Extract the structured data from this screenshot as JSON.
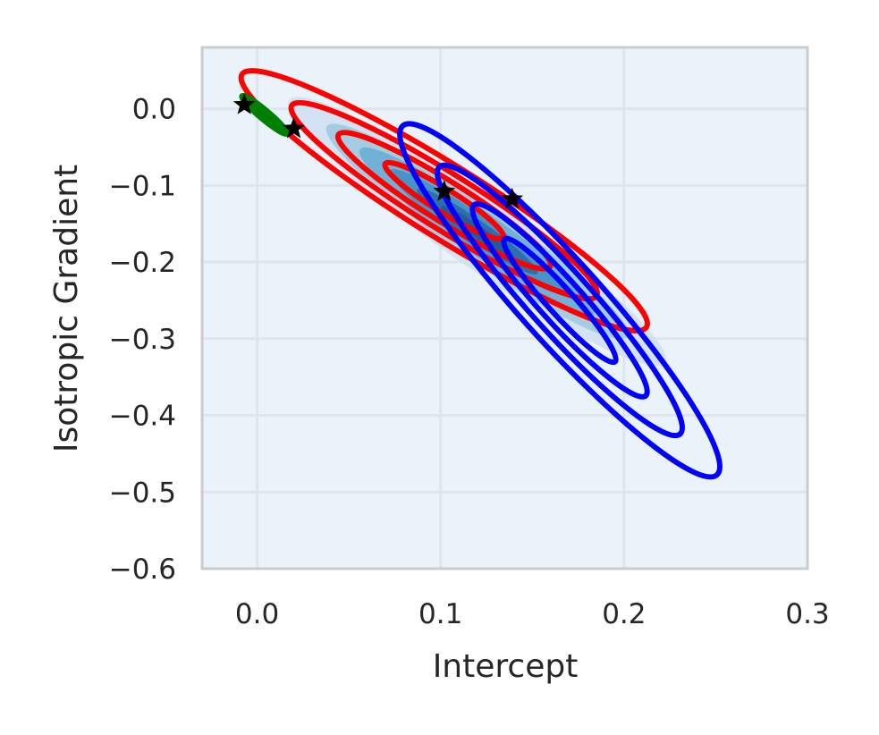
{
  "chart_data": {
    "type": "contour",
    "title": "",
    "xlabel": "Intercept",
    "ylabel": "Isotropic Gradient",
    "xlim": [
      -0.03,
      0.3
    ],
    "ylim": [
      -0.6,
      0.08
    ],
    "xticks": [
      0.0,
      0.1,
      0.2,
      0.3
    ],
    "xtick_labels": [
      "0.0",
      "0.1",
      "0.2",
      "0.3"
    ],
    "yticks": [
      0.0,
      -0.1,
      -0.2,
      -0.3,
      -0.4,
      -0.5,
      -0.6
    ],
    "ytick_labels": [
      "0.0",
      "−0.1",
      "−0.2",
      "−0.3",
      "−0.4",
      "−0.5",
      "−0.6"
    ],
    "grid": true,
    "colors": {
      "background": "#eaf2fa",
      "grid": "#dfe5ec",
      "spine": "#cccccc",
      "fill_levels": [
        "#d0e1f2",
        "#9ecae1",
        "#6baed6",
        "#4292c6",
        "#2e68a8",
        "#24589a"
      ],
      "red": "#ff0000",
      "blue": "#0000ff",
      "green": "#008000",
      "star": "#000000"
    },
    "filled_density": {
      "center": [
        0.12,
        -0.16
      ],
      "levels": [
        {
          "rx": 0.125,
          "ry": 0.045,
          "angle_deg": 35
        },
        {
          "rx": 0.1,
          "ry": 0.036,
          "angle_deg": 35
        },
        {
          "rx": 0.078,
          "ry": 0.028,
          "angle_deg": 35
        },
        {
          "rx": 0.058,
          "ry": 0.02,
          "angle_deg": 35
        },
        {
          "rx": 0.04,
          "ry": 0.014,
          "angle_deg": 35
        },
        {
          "rx": 0.024,
          "ry": 0.008,
          "angle_deg": 35
        }
      ]
    },
    "series": [
      {
        "color": "red",
        "center": [
          0.102,
          -0.12
        ],
        "levels": [
          {
            "rx": 0.13,
            "ry": 0.047,
            "angle_deg": 32
          },
          {
            "rx": 0.098,
            "ry": 0.036,
            "angle_deg": 32
          },
          {
            "rx": 0.068,
            "ry": 0.026,
            "angle_deg": 32
          },
          {
            "rx": 0.038,
            "ry": 0.015,
            "angle_deg": 32
          }
        ]
      },
      {
        "color": "blue",
        "center": [
          0.165,
          -0.25
        ],
        "levels": [
          {
            "rx": 0.128,
            "ry": 0.053,
            "angle_deg": 48
          },
          {
            "rx": 0.098,
            "ry": 0.04,
            "angle_deg": 48
          },
          {
            "rx": 0.07,
            "ry": 0.028,
            "angle_deg": 48
          },
          {
            "rx": 0.045,
            "ry": 0.017,
            "angle_deg": 48
          }
        ]
      },
      {
        "color": "green",
        "center": [
          0.004,
          -0.008
        ],
        "levels": [
          {
            "rx": 0.016,
            "ry": 0.006,
            "angle_deg": 40
          }
        ]
      }
    ],
    "points": [
      {
        "x": -0.007,
        "y": 0.005
      },
      {
        "x": 0.02,
        "y": -0.026
      },
      {
        "x": 0.102,
        "y": -0.108
      },
      {
        "x": 0.139,
        "y": -0.118
      }
    ]
  }
}
